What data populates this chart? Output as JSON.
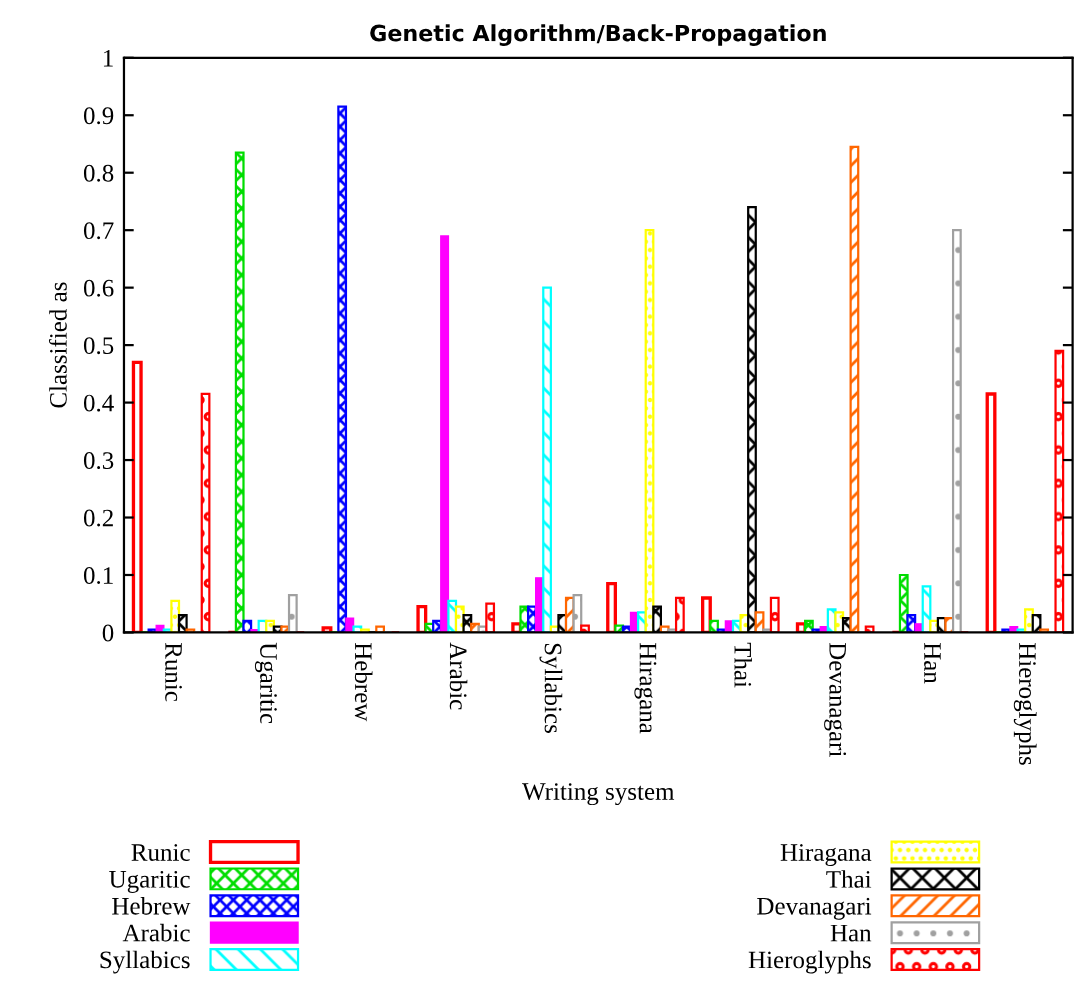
{
  "chart_data": {
    "type": "bar",
    "title": "Genetic Algorithm/Back-Propagation",
    "xlabel": "Writing system",
    "ylabel": "Classified as",
    "categories": [
      "Runic",
      "Ugaritic",
      "Hebrew",
      "Arabic",
      "Syllabics",
      "Hiragana",
      "Thai",
      "Devanagari",
      "Han",
      "Hieroglyphs"
    ],
    "series": [
      {
        "name": "Runic",
        "color": "#ff0000",
        "values": [
          0.47,
          0.0,
          0.008,
          0.045,
          0.015,
          0.085,
          0.06,
          0.015,
          0.0,
          0.415
        ]
      },
      {
        "name": "Ugaritic",
        "color": "#00dd00",
        "values": [
          0.0,
          0.835,
          0.0,
          0.015,
          0.045,
          0.012,
          0.02,
          0.02,
          0.1,
          0.0
        ]
      },
      {
        "name": "Hebrew",
        "color": "#0000ff",
        "values": [
          0.005,
          0.02,
          0.915,
          0.02,
          0.045,
          0.01,
          0.005,
          0.005,
          0.03,
          0.005
        ]
      },
      {
        "name": "Arabic",
        "color": "#ff00ff",
        "values": [
          0.012,
          0.005,
          0.025,
          0.69,
          0.095,
          0.035,
          0.02,
          0.01,
          0.015,
          0.01
        ]
      },
      {
        "name": "Syllabics",
        "color": "#00ffff",
        "values": [
          0.005,
          0.02,
          0.01,
          0.055,
          0.6,
          0.035,
          0.02,
          0.04,
          0.08,
          0.005
        ]
      },
      {
        "name": "Hiragana",
        "color": "#ffff00",
        "values": [
          0.055,
          0.02,
          0.005,
          0.045,
          0.01,
          0.7,
          0.03,
          0.035,
          0.02,
          0.04
        ]
      },
      {
        "name": "Thai",
        "color": "#000000",
        "values": [
          0.03,
          0.01,
          0.0,
          0.03,
          0.03,
          0.045,
          0.74,
          0.025,
          0.025,
          0.03
        ]
      },
      {
        "name": "Devanagari",
        "color": "#ff6600",
        "values": [
          0.005,
          0.01,
          0.01,
          0.015,
          0.06,
          0.01,
          0.035,
          0.845,
          0.025,
          0.005
        ]
      },
      {
        "name": "Han",
        "color": "#a0a0a0",
        "values": [
          0.0,
          0.065,
          0.0,
          0.01,
          0.065,
          0.005,
          0.005,
          0.0,
          0.7,
          0.0
        ]
      },
      {
        "name": "Hieroglyphs",
        "color": "#ff0000",
        "values": [
          0.415,
          0.0,
          0.0,
          0.05,
          0.012,
          0.06,
          0.06,
          0.01,
          0.0,
          0.49
        ]
      }
    ],
    "ylim": [
      0,
      1
    ],
    "yticks": [
      0,
      0.1,
      0.2,
      0.3,
      0.4,
      0.5,
      0.6,
      0.7,
      0.8,
      0.9,
      1
    ],
    "grid": false,
    "legend": "bottom"
  }
}
